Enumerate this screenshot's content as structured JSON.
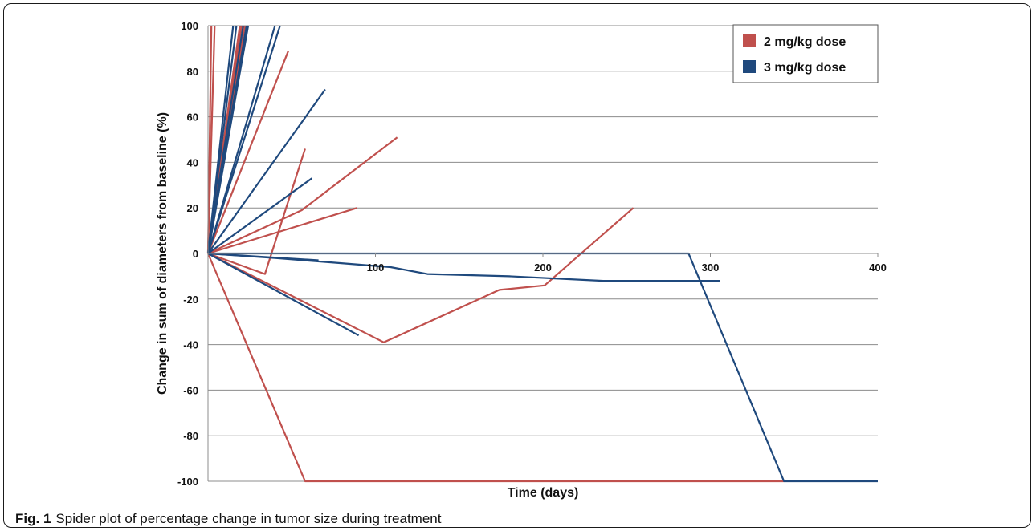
{
  "caption": {
    "label": "Fig. 1",
    "text": "Spider plot of percentage change in tumor size during treatment"
  },
  "chart_data": {
    "type": "line",
    "title": "",
    "xlabel": "Time (days)",
    "ylabel": "Change in sum of diameters from baseline (%)",
    "xlim": [
      0,
      400
    ],
    "ylim": [
      -100,
      100
    ],
    "x_ticks": [
      100,
      200,
      300,
      400
    ],
    "x_tick_labels": [
      "100",
      "200",
      "300",
      "400"
    ],
    "y_ticks": [
      -100,
      -80,
      -60,
      -40,
      -20,
      0,
      20,
      40,
      60,
      80,
      100
    ],
    "y_tick_labels": [
      "-100",
      "-80",
      "-60",
      "-40",
      "-20",
      "0",
      "20",
      "40",
      "60",
      "80",
      "100"
    ],
    "grid": "horizontal",
    "legend_position": "top-right",
    "colors": {
      "2 mg/kg dose": "#c0504d",
      "3 mg/kg dose": "#1f497d"
    },
    "legend": [
      {
        "name": "2 mg/kg dose",
        "color": "#c0504d"
      },
      {
        "name": "3 mg/kg dose",
        "color": "#1f497d"
      }
    ],
    "series": [
      {
        "group": "2 mg/kg dose",
        "points": [
          [
            0,
            0
          ],
          [
            2,
            100
          ]
        ]
      },
      {
        "group": "2 mg/kg dose",
        "points": [
          [
            0,
            0
          ],
          [
            4,
            100
          ]
        ]
      },
      {
        "group": "2 mg/kg dose",
        "points": [
          [
            0,
            0
          ],
          [
            19,
            100
          ]
        ]
      },
      {
        "group": "2 mg/kg dose",
        "points": [
          [
            0,
            0
          ],
          [
            20,
            100
          ]
        ]
      },
      {
        "group": "2 mg/kg dose",
        "points": [
          [
            0,
            0
          ],
          [
            22,
            100
          ]
        ]
      },
      {
        "group": "2 mg/kg dose",
        "points": [
          [
            0,
            0
          ],
          [
            48,
            89
          ]
        ]
      },
      {
        "group": "2 mg/kg dose",
        "points": [
          [
            0,
            0
          ],
          [
            34,
            -9
          ],
          [
            58,
            46
          ]
        ]
      },
      {
        "group": "2 mg/kg dose",
        "points": [
          [
            0,
            0
          ],
          [
            56,
            19
          ],
          [
            113,
            51
          ]
        ]
      },
      {
        "group": "2 mg/kg dose",
        "points": [
          [
            0,
            0
          ],
          [
            89,
            20
          ]
        ]
      },
      {
        "group": "2 mg/kg dose",
        "points": [
          [
            0,
            0
          ],
          [
            105,
            -39
          ],
          [
            174,
            -16
          ],
          [
            201,
            -14
          ],
          [
            254,
            20
          ]
        ]
      },
      {
        "group": "2 mg/kg dose",
        "points": [
          [
            0,
            0
          ],
          [
            58,
            -100
          ],
          [
            344,
            -100
          ]
        ]
      },
      {
        "group": "3 mg/kg dose",
        "points": [
          [
            0,
            0
          ],
          [
            15,
            100
          ]
        ]
      },
      {
        "group": "3 mg/kg dose",
        "points": [
          [
            0,
            0
          ],
          [
            17,
            100
          ]
        ]
      },
      {
        "group": "3 mg/kg dose",
        "points": [
          [
            0,
            0
          ],
          [
            21,
            100
          ]
        ]
      },
      {
        "group": "3 mg/kg dose",
        "points": [
          [
            0,
            0
          ],
          [
            23,
            100
          ]
        ]
      },
      {
        "group": "3 mg/kg dose",
        "points": [
          [
            0,
            0
          ],
          [
            24,
            100
          ]
        ]
      },
      {
        "group": "3 mg/kg dose",
        "points": [
          [
            0,
            0
          ],
          [
            40,
            100
          ]
        ]
      },
      {
        "group": "3 mg/kg dose",
        "points": [
          [
            0,
            0
          ],
          [
            43,
            100
          ]
        ]
      },
      {
        "group": "3 mg/kg dose",
        "points": [
          [
            0,
            0
          ],
          [
            70,
            72
          ]
        ]
      },
      {
        "group": "3 mg/kg dose",
        "points": [
          [
            0,
            0
          ],
          [
            62,
            33
          ]
        ]
      },
      {
        "group": "3 mg/kg dose",
        "points": [
          [
            0,
            0
          ],
          [
            90,
            -36
          ]
        ]
      },
      {
        "group": "3 mg/kg dose",
        "points": [
          [
            0,
            0
          ],
          [
            66,
            -3
          ]
        ]
      },
      {
        "group": "3 mg/kg dose",
        "points": [
          [
            0,
            0
          ],
          [
            40,
            -2
          ],
          [
            75,
            -4
          ],
          [
            109,
            -6
          ],
          [
            131,
            -9
          ],
          [
            180,
            -10
          ],
          [
            236,
            -12
          ],
          [
            306,
            -12
          ]
        ]
      },
      {
        "group": "3 mg/kg dose",
        "points": [
          [
            0,
            0
          ],
          [
            287,
            0
          ],
          [
            344,
            -100
          ],
          [
            400,
            -100
          ]
        ]
      }
    ]
  }
}
